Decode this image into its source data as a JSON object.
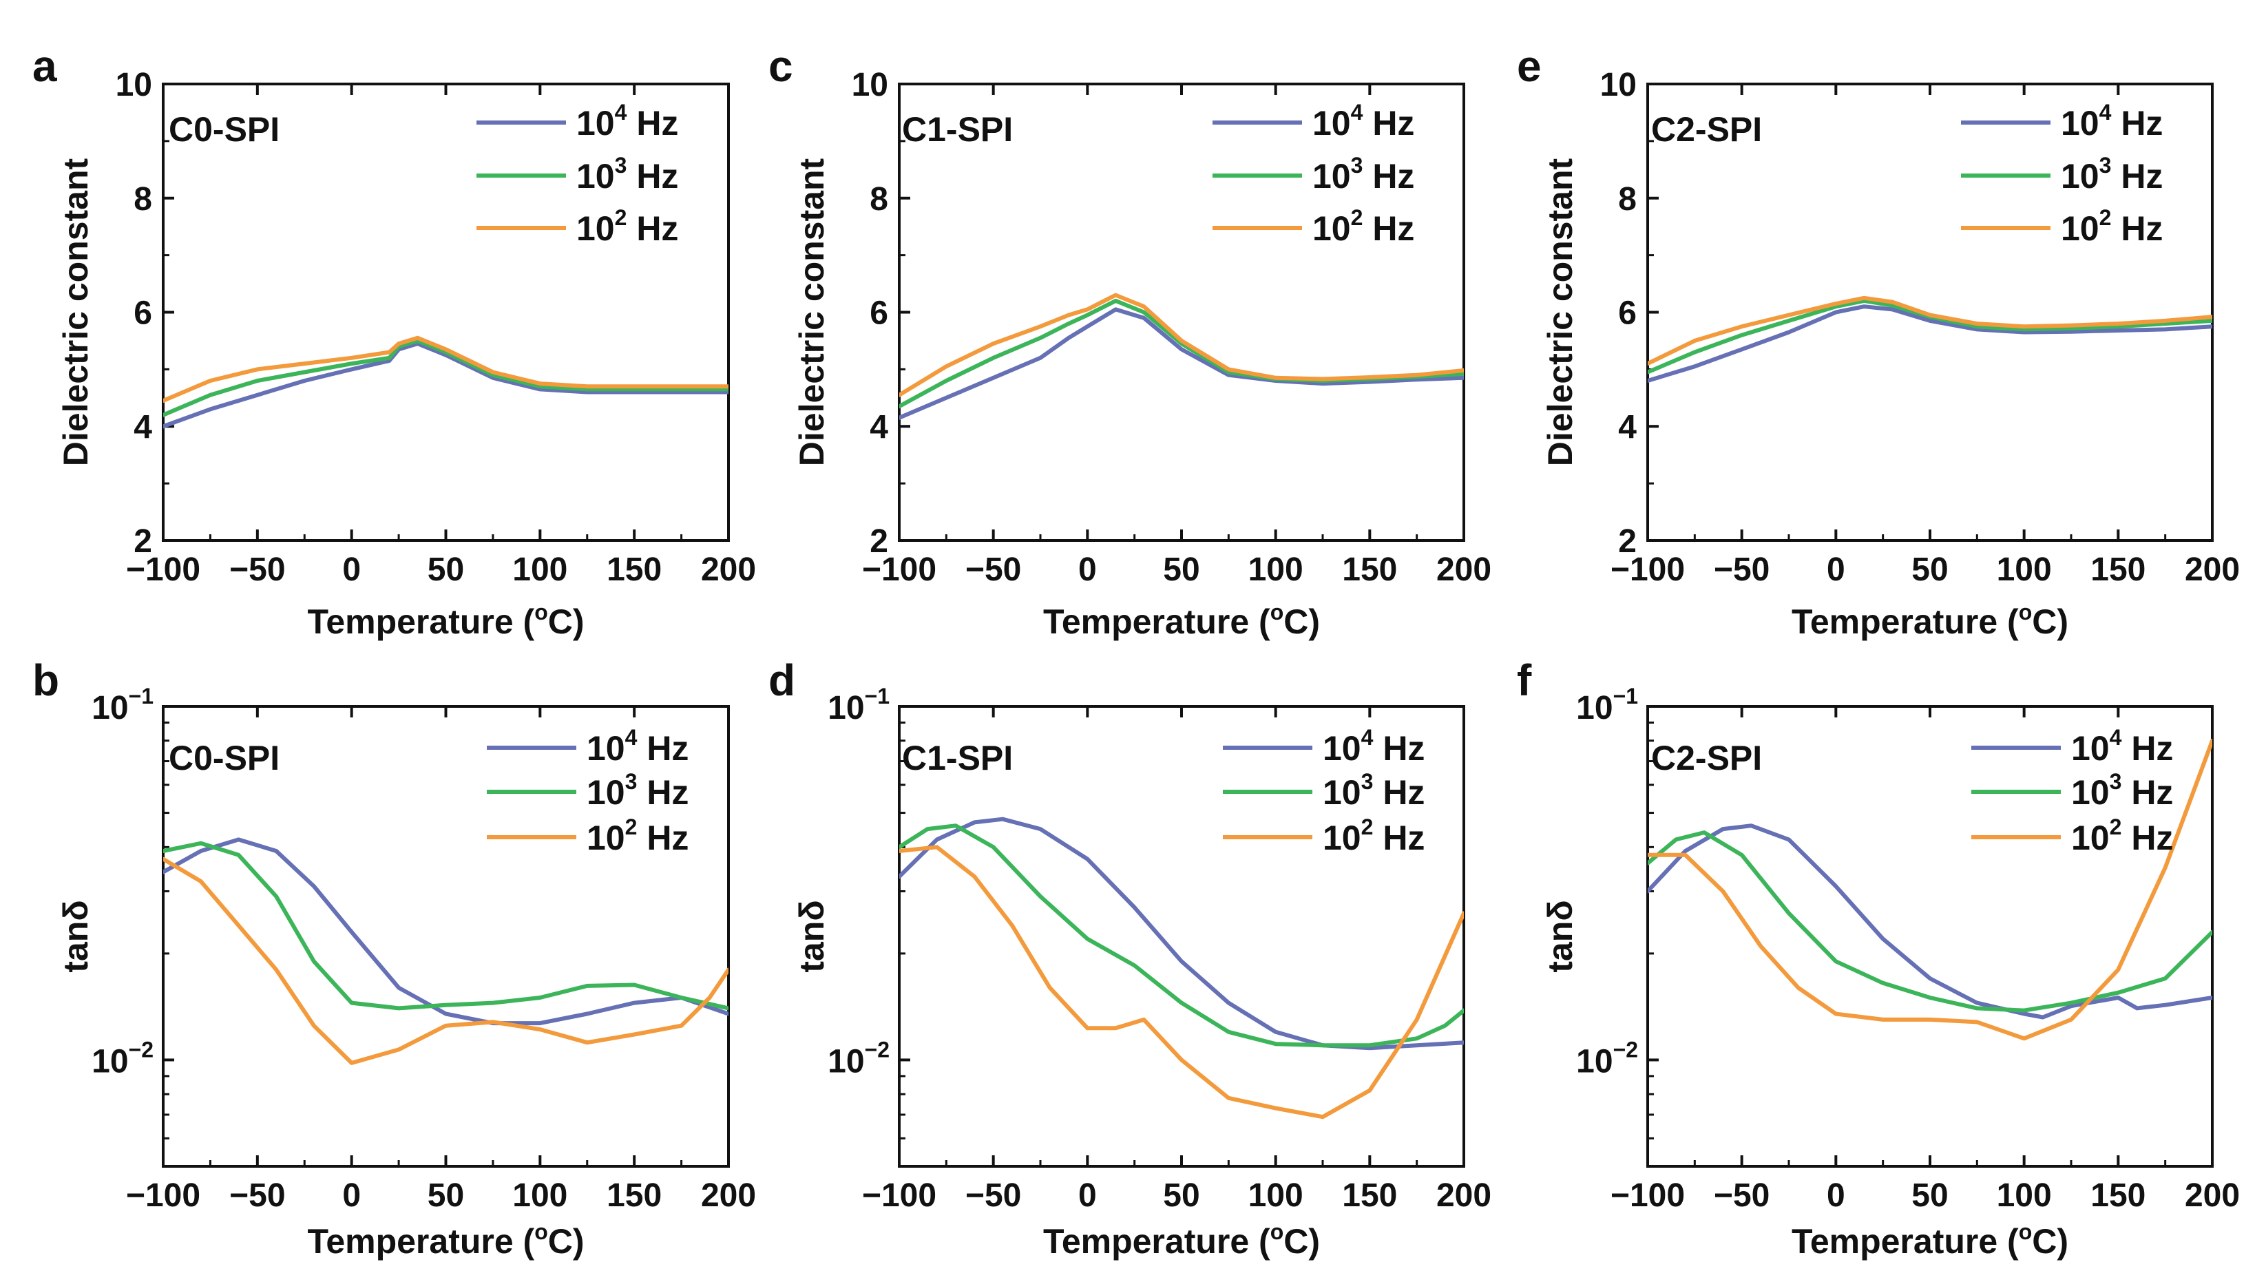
{
  "figure": {
    "legend_labels": [
      {
        "base": "10",
        "exp": "4",
        "unit": " Hz"
      },
      {
        "base": "10",
        "exp": "3",
        "unit": " Hz"
      },
      {
        "base": "10",
        "exp": "2",
        "unit": " Hz"
      }
    ],
    "series_colors": [
      "#6570b5",
      "#3cb55a",
      "#f39a3c"
    ],
    "x_label": {
      "prefix": "Temperature (",
      "sup": "o",
      "suffix": "C)"
    },
    "x_ticks": [
      -100,
      -50,
      0,
      50,
      100,
      150,
      200
    ],
    "x_range": [
      -100,
      200
    ]
  },
  "chart_data": [
    {
      "panel_letter": "a",
      "type": "line",
      "sample": "C0-SPI",
      "ylabel": "Dielectric constant",
      "yscale": "linear",
      "ylim": [
        2,
        10
      ],
      "y_ticks": [
        {
          "v": 2,
          "label": "2"
        },
        {
          "v": 4,
          "label": "4"
        },
        {
          "v": 6,
          "label": "6"
        },
        {
          "v": 8,
          "label": "8"
        },
        {
          "v": 10,
          "label": "10"
        }
      ],
      "series": [
        {
          "name": "10^4 Hz",
          "x": [
            -100,
            -75,
            -50,
            -25,
            0,
            20,
            25,
            35,
            50,
            75,
            100,
            125,
            150,
            175,
            200
          ],
          "values": [
            4.0,
            4.3,
            4.55,
            4.8,
            5.0,
            5.15,
            5.35,
            5.45,
            5.25,
            4.85,
            4.65,
            4.6,
            4.6,
            4.6,
            4.6
          ]
        },
        {
          "name": "10^3 Hz",
          "x": [
            -100,
            -75,
            -50,
            -25,
            0,
            20,
            25,
            35,
            50,
            75,
            100,
            125,
            150,
            175,
            200
          ],
          "values": [
            4.2,
            4.55,
            4.8,
            4.95,
            5.1,
            5.2,
            5.4,
            5.5,
            5.3,
            4.9,
            4.7,
            4.65,
            4.65,
            4.65,
            4.65
          ]
        },
        {
          "name": "10^2 Hz",
          "x": [
            -100,
            -75,
            -50,
            -25,
            0,
            20,
            25,
            35,
            50,
            75,
            100,
            125,
            150,
            175,
            200
          ],
          "values": [
            4.45,
            4.8,
            5.0,
            5.1,
            5.2,
            5.3,
            5.45,
            5.55,
            5.35,
            4.95,
            4.75,
            4.7,
            4.7,
            4.7,
            4.7
          ]
        }
      ]
    },
    {
      "panel_letter": "b",
      "type": "line",
      "sample": "C0-SPI",
      "ylabel": "tanδ",
      "yscale": "log",
      "ylim": [
        0.005,
        0.1
      ],
      "y_ticks": [
        {
          "v": 0.01,
          "base": "10",
          "exp": "−2"
        },
        {
          "v": 0.1,
          "base": "10",
          "exp": "−1"
        }
      ],
      "series": [
        {
          "name": "10^4 Hz",
          "x": [
            -100,
            -80,
            -60,
            -40,
            -20,
            0,
            25,
            50,
            75,
            100,
            125,
            150,
            175,
            200
          ],
          "values": [
            0.034,
            0.039,
            0.042,
            0.039,
            0.031,
            0.023,
            0.016,
            0.0135,
            0.0127,
            0.0127,
            0.0135,
            0.0145,
            0.015,
            0.0135
          ]
        },
        {
          "name": "10^3 Hz",
          "x": [
            -100,
            -80,
            -60,
            -40,
            -20,
            0,
            25,
            50,
            75,
            100,
            125,
            150,
            175,
            200
          ],
          "values": [
            0.039,
            0.041,
            0.038,
            0.029,
            0.019,
            0.0145,
            0.014,
            0.0143,
            0.0145,
            0.015,
            0.0162,
            0.0163,
            0.015,
            0.014
          ]
        },
        {
          "name": "10^2 Hz",
          "x": [
            -100,
            -80,
            -60,
            -40,
            -20,
            0,
            25,
            50,
            75,
            100,
            125,
            150,
            175,
            190,
            200
          ],
          "values": [
            0.037,
            0.032,
            0.024,
            0.018,
            0.0125,
            0.0098,
            0.0107,
            0.0125,
            0.0128,
            0.0122,
            0.0112,
            0.0118,
            0.0125,
            0.015,
            0.018
          ]
        }
      ]
    },
    {
      "panel_letter": "c",
      "type": "line",
      "sample": "C1-SPI",
      "ylabel": "Dielectric constant",
      "yscale": "linear",
      "ylim": [
        2,
        10
      ],
      "y_ticks": [
        {
          "v": 2,
          "label": "2"
        },
        {
          "v": 4,
          "label": "4"
        },
        {
          "v": 6,
          "label": "6"
        },
        {
          "v": 8,
          "label": "8"
        },
        {
          "v": 10,
          "label": "10"
        }
      ],
      "series": [
        {
          "name": "10^4 Hz",
          "x": [
            -100,
            -75,
            -50,
            -25,
            -10,
            0,
            15,
            30,
            50,
            75,
            100,
            125,
            150,
            175,
            200
          ],
          "values": [
            4.15,
            4.5,
            4.85,
            5.2,
            5.55,
            5.75,
            6.05,
            5.9,
            5.35,
            4.9,
            4.8,
            4.75,
            4.78,
            4.82,
            4.85
          ]
        },
        {
          "name": "10^3 Hz",
          "x": [
            -100,
            -75,
            -50,
            -25,
            -10,
            0,
            15,
            30,
            50,
            75,
            100,
            125,
            150,
            175,
            200
          ],
          "values": [
            4.35,
            4.8,
            5.2,
            5.55,
            5.8,
            5.95,
            6.2,
            6.0,
            5.45,
            4.95,
            4.83,
            4.8,
            4.83,
            4.87,
            4.92
          ]
        },
        {
          "name": "10^2 Hz",
          "x": [
            -100,
            -75,
            -50,
            -25,
            -10,
            0,
            15,
            30,
            50,
            75,
            100,
            125,
            150,
            175,
            200
          ],
          "values": [
            4.55,
            5.05,
            5.45,
            5.75,
            5.95,
            6.05,
            6.3,
            6.1,
            5.5,
            5.0,
            4.85,
            4.83,
            4.86,
            4.9,
            4.98
          ]
        }
      ]
    },
    {
      "panel_letter": "d",
      "type": "line",
      "sample": "C1-SPI",
      "ylabel": "tanδ",
      "yscale": "log",
      "ylim": [
        0.005,
        0.1
      ],
      "y_ticks": [
        {
          "v": 0.01,
          "base": "10",
          "exp": "−2"
        },
        {
          "v": 0.1,
          "base": "10",
          "exp": "−1"
        }
      ],
      "series": [
        {
          "name": "10^4 Hz",
          "x": [
            -100,
            -80,
            -60,
            -45,
            -25,
            0,
            25,
            50,
            75,
            100,
            125,
            150,
            175,
            200
          ],
          "values": [
            0.033,
            0.042,
            0.047,
            0.048,
            0.045,
            0.037,
            0.027,
            0.019,
            0.0145,
            0.012,
            0.011,
            0.0108,
            0.011,
            0.0112
          ]
        },
        {
          "name": "10^3 Hz",
          "x": [
            -100,
            -85,
            -70,
            -50,
            -25,
            0,
            25,
            50,
            75,
            100,
            125,
            150,
            175,
            190,
            200
          ],
          "values": [
            0.04,
            0.045,
            0.046,
            0.04,
            0.029,
            0.022,
            0.0185,
            0.0145,
            0.012,
            0.0111,
            0.011,
            0.011,
            0.0115,
            0.0125,
            0.0138
          ]
        },
        {
          "name": "10^2 Hz",
          "x": [
            -100,
            -80,
            -60,
            -40,
            -20,
            0,
            15,
            30,
            50,
            75,
            100,
            125,
            150,
            175,
            200
          ],
          "values": [
            0.039,
            0.04,
            0.033,
            0.024,
            0.016,
            0.0123,
            0.0123,
            0.013,
            0.01,
            0.0078,
            0.0073,
            0.0069,
            0.0082,
            0.013,
            0.026
          ]
        }
      ]
    },
    {
      "panel_letter": "e",
      "type": "line",
      "sample": "C2-SPI",
      "ylabel": "Dielectric constant",
      "yscale": "linear",
      "ylim": [
        2,
        10
      ],
      "y_ticks": [
        {
          "v": 2,
          "label": "2"
        },
        {
          "v": 4,
          "label": "4"
        },
        {
          "v": 6,
          "label": "6"
        },
        {
          "v": 8,
          "label": "8"
        },
        {
          "v": 10,
          "label": "10"
        }
      ],
      "series": [
        {
          "name": "10^4 Hz",
          "x": [
            -100,
            -75,
            -50,
            -25,
            0,
            15,
            30,
            50,
            75,
            100,
            125,
            150,
            175,
            200
          ],
          "values": [
            4.8,
            5.05,
            5.35,
            5.65,
            6.0,
            6.1,
            6.05,
            5.85,
            5.7,
            5.65,
            5.66,
            5.68,
            5.7,
            5.75
          ]
        },
        {
          "name": "10^3 Hz",
          "x": [
            -100,
            -75,
            -50,
            -25,
            0,
            15,
            30,
            50,
            75,
            100,
            125,
            150,
            175,
            200
          ],
          "values": [
            4.95,
            5.3,
            5.6,
            5.85,
            6.1,
            6.2,
            6.12,
            5.92,
            5.75,
            5.7,
            5.72,
            5.75,
            5.8,
            5.85
          ]
        },
        {
          "name": "10^2 Hz",
          "x": [
            -100,
            -75,
            -50,
            -25,
            0,
            15,
            30,
            50,
            75,
            100,
            125,
            150,
            175,
            200
          ],
          "values": [
            5.1,
            5.5,
            5.75,
            5.95,
            6.15,
            6.25,
            6.18,
            5.95,
            5.8,
            5.75,
            5.77,
            5.8,
            5.85,
            5.92
          ]
        }
      ]
    },
    {
      "panel_letter": "f",
      "type": "line",
      "sample": "C2-SPI",
      "ylabel": "tanδ",
      "yscale": "log",
      "ylim": [
        0.005,
        0.1
      ],
      "y_ticks": [
        {
          "v": 0.01,
          "base": "10",
          "exp": "−2"
        },
        {
          "v": 0.1,
          "base": "10",
          "exp": "−1"
        }
      ],
      "series": [
        {
          "name": "10^4 Hz",
          "x": [
            -100,
            -80,
            -60,
            -45,
            -25,
            0,
            25,
            50,
            75,
            100,
            110,
            125,
            150,
            160,
            175,
            200
          ],
          "values": [
            0.03,
            0.039,
            0.045,
            0.046,
            0.042,
            0.031,
            0.022,
            0.017,
            0.0145,
            0.0135,
            0.0132,
            0.0142,
            0.015,
            0.014,
            0.0143,
            0.015
          ]
        },
        {
          "name": "10^3 Hz",
          "x": [
            -100,
            -85,
            -70,
            -50,
            -25,
            0,
            25,
            50,
            75,
            100,
            125,
            150,
            175,
            200
          ],
          "values": [
            0.036,
            0.042,
            0.044,
            0.038,
            0.026,
            0.019,
            0.0165,
            0.015,
            0.014,
            0.0138,
            0.0145,
            0.0155,
            0.017,
            0.023
          ]
        },
        {
          "name": "10^2 Hz",
          "x": [
            -100,
            -80,
            -60,
            -40,
            -20,
            0,
            25,
            50,
            75,
            100,
            125,
            150,
            175,
            200
          ],
          "values": [
            0.038,
            0.038,
            0.03,
            0.021,
            0.016,
            0.0135,
            0.013,
            0.013,
            0.0128,
            0.0115,
            0.013,
            0.018,
            0.035,
            0.08
          ]
        }
      ]
    }
  ]
}
